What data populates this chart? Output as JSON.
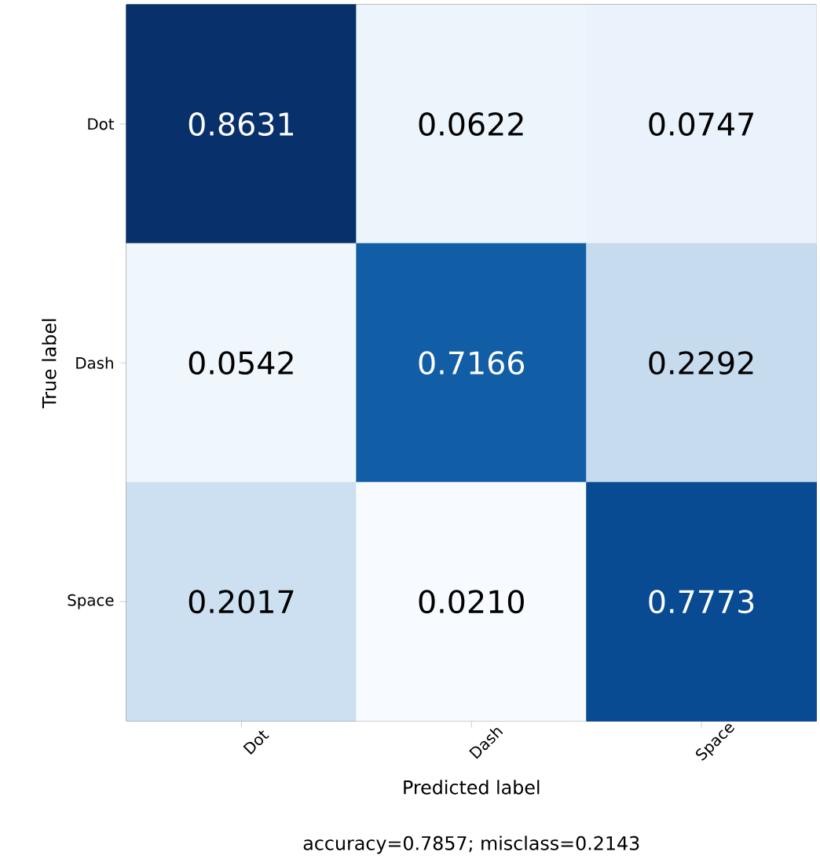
{
  "chart_data": {
    "type": "heatmap",
    "categories": [
      "Dot",
      "Dash",
      "Space"
    ],
    "y_categories": [
      "Dot",
      "Dash",
      "Space"
    ],
    "cells": [
      [
        0.8631,
        0.0622,
        0.0747
      ],
      [
        0.0542,
        0.7166,
        0.2292
      ],
      [
        0.2017,
        0.021,
        0.7773
      ]
    ],
    "cell_labels": [
      [
        "0.8631",
        "0.0622",
        "0.0747"
      ],
      [
        "0.0542",
        "0.7166",
        "0.2292"
      ],
      [
        "0.2017",
        "0.0210",
        "0.7773"
      ]
    ],
    "xlabel": "Predicted label",
    "ylabel": "True label",
    "annotations": [
      "accuracy=0.7857; misclass=0.2143"
    ]
  }
}
